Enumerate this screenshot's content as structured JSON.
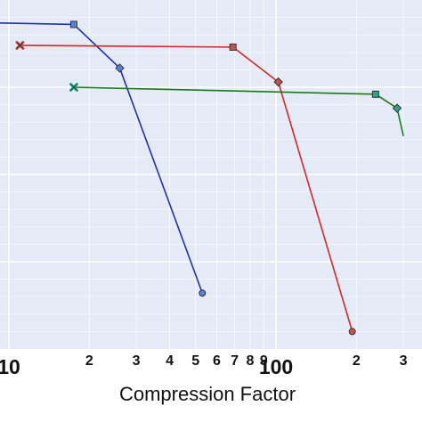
{
  "chart_data": {
    "type": "line",
    "xlabel": "Compression Factor",
    "ylabel": "",
    "x_scale": "log",
    "xlim": [
      10,
      300
    ],
    "ylim": [
      0,
      1
    ],
    "grid": true,
    "background": "#e5ebf6",
    "gridline_color": "#ffffff",
    "x_tick_labels": [
      {
        "value": 10,
        "label": "10",
        "major": true
      },
      {
        "value": 20,
        "label": "2",
        "major": false
      },
      {
        "value": 30,
        "label": "3",
        "major": false
      },
      {
        "value": 40,
        "label": "4",
        "major": false
      },
      {
        "value": 50,
        "label": "5",
        "major": false
      },
      {
        "value": 60,
        "label": "6",
        "major": false
      },
      {
        "value": 70,
        "label": "7",
        "major": false
      },
      {
        "value": 80,
        "label": "8",
        "major": false
      },
      {
        "value": 90,
        "label": "9",
        "major": false
      },
      {
        "value": 100,
        "label": "100",
        "major": true
      },
      {
        "value": 200,
        "label": "2",
        "major": false
      },
      {
        "value": 300,
        "label": "3",
        "major": false
      }
    ],
    "series": [
      {
        "color": "#1f2fb0",
        "marker_fill": "#5b7fd6",
        "points": [
          {
            "x": 8.0,
            "y": 0.935,
            "marker": "square"
          },
          {
            "x": 17.5,
            "y": 0.93,
            "marker": "square"
          },
          {
            "x": 26.0,
            "y": 0.805,
            "marker": "diamond"
          },
          {
            "x": 53.0,
            "y": 0.16,
            "marker": "circle"
          }
        ]
      },
      {
        "color": "#d62728",
        "marker_fill": "#c2544d",
        "points": [
          {
            "x": 11.0,
            "y": 0.87,
            "marker": "x"
          },
          {
            "x": 69.0,
            "y": 0.865,
            "marker": "square"
          },
          {
            "x": 102.0,
            "y": 0.765,
            "marker": "diamond"
          },
          {
            "x": 193.0,
            "y": 0.05,
            "marker": "circle"
          }
        ]
      },
      {
        "color": "#1a7a1a",
        "marker_fill": "#2ca58d",
        "points": [
          {
            "x": 17.5,
            "y": 0.75,
            "marker": "x"
          },
          {
            "x": 236.0,
            "y": 0.73,
            "marker": "square"
          },
          {
            "x": 284.0,
            "y": 0.69,
            "marker": "diamond"
          },
          {
            "x": 300.0,
            "y": 0.61,
            "marker": "none"
          }
        ]
      }
    ]
  }
}
